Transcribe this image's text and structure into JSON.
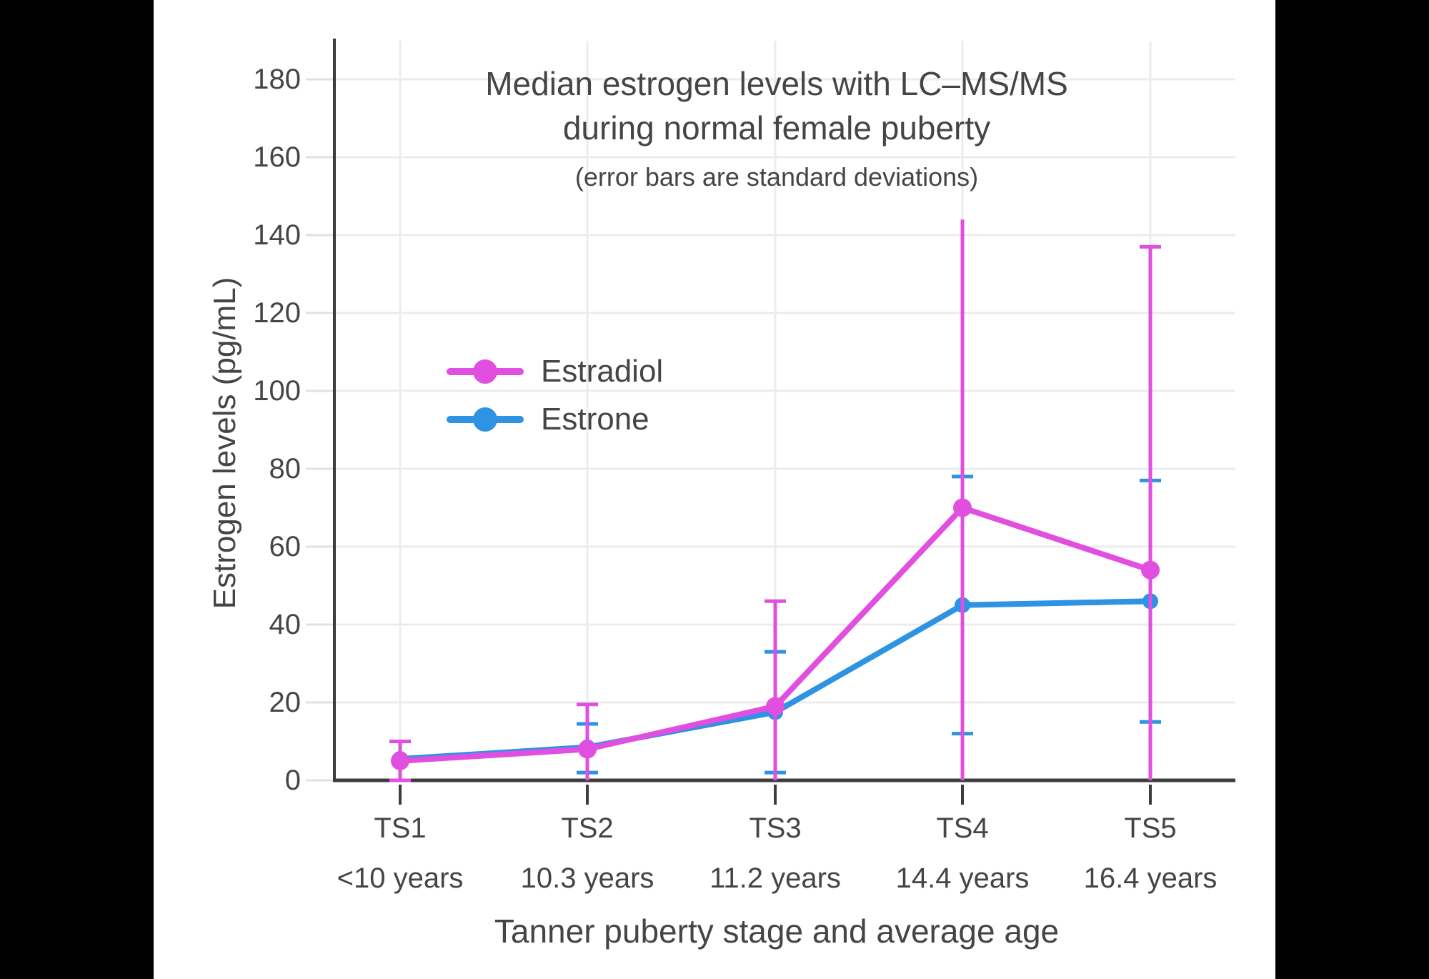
{
  "chart_data": {
    "type": "line",
    "title": "Median estrogen levels with LC–MS/MS during normal female puberty",
    "title_lines": [
      "Median estrogen levels with LC–MS/MS",
      "during normal female puberty"
    ],
    "subtitle": "(error bars are standard deviations)",
    "xlabel": "Tanner puberty stage and average age",
    "ylabel": "Estrogen levels (pg/mL)",
    "ylim": [
      0,
      190
    ],
    "y_ticks": [
      0,
      20,
      40,
      60,
      80,
      100,
      120,
      140,
      160,
      180
    ],
    "grid": true,
    "legend_position": "inside-upper-left",
    "categories": [
      {
        "stage": "TS1",
        "age": "<10 years"
      },
      {
        "stage": "TS2",
        "age": "10.3 years"
      },
      {
        "stage": "TS3",
        "age": "11.2 years"
      },
      {
        "stage": "TS4",
        "age": "14.4 years"
      },
      {
        "stage": "TS5",
        "age": "16.4 years"
      }
    ],
    "legend": [
      {
        "label": "Estradiol",
        "color": "#E14FE1"
      },
      {
        "label": "Estrone",
        "color": "#2D93E2"
      }
    ],
    "colors": {
      "estradiol": "#E14FE1",
      "estrone": "#2D93E2",
      "text": "#454545",
      "gridline": "#ECECEC",
      "axis": "#3D3D3D",
      "y_tick": "#E1E1E1"
    },
    "series": [
      {
        "name": "Estrone",
        "color": "#2D93E2",
        "marker_radius": 11,
        "points": [
          {
            "median": 5.5,
            "whisker_top": null,
            "whisker_bottom": null,
            "cap_top": false,
            "cap_bottom": false
          },
          {
            "median": 8.5,
            "whisker_top": 14.5,
            "whisker_bottom": 2,
            "cap_top": true,
            "cap_bottom": true
          },
          {
            "median": 17.5,
            "whisker_top": 33,
            "whisker_bottom": 2,
            "cap_top": true,
            "cap_bottom": true
          },
          {
            "median": 45,
            "whisker_top": 78,
            "whisker_bottom": 12,
            "cap_top": true,
            "cap_bottom": true
          },
          {
            "median": 46,
            "whisker_top": 77,
            "whisker_bottom": 15,
            "cap_top": true,
            "cap_bottom": true
          }
        ]
      },
      {
        "name": "Estradiol",
        "color": "#E14FE1",
        "marker_radius": 13,
        "points": [
          {
            "median": 5,
            "whisker_top": 10,
            "whisker_bottom": 0,
            "cap_top": true,
            "cap_bottom": true
          },
          {
            "median": 8,
            "whisker_top": 19.5,
            "whisker_bottom": 0,
            "cap_top": true,
            "cap_bottom": false
          },
          {
            "median": 19,
            "whisker_top": 46,
            "whisker_bottom": 0,
            "cap_top": true,
            "cap_bottom": false
          },
          {
            "median": 70,
            "whisker_top": 144,
            "whisker_bottom": 0,
            "cap_top": false,
            "cap_bottom": false
          },
          {
            "median": 54,
            "whisker_top": 137,
            "whisker_bottom": 0,
            "cap_top": true,
            "cap_bottom": false
          }
        ]
      }
    ]
  }
}
